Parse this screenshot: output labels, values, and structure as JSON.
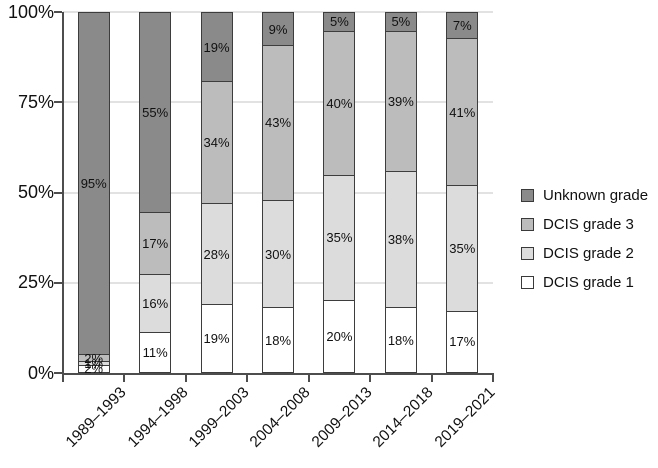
{
  "chart_data": {
    "type": "bar",
    "variant": "stacked-100-percent",
    "categories": [
      "1989–1993",
      "1994–1998",
      "1999–2003",
      "2004–2008",
      "2009–2013",
      "2014–2018",
      "2019–2021"
    ],
    "series": [
      {
        "name": "DCIS grade 1",
        "color": "#ffffff",
        "values": [
          2,
          11,
          19,
          18,
          20,
          18,
          17
        ]
      },
      {
        "name": "DCIS grade 2",
        "color": "#dcdcdc",
        "values": [
          1,
          16,
          28,
          30,
          35,
          38,
          35
        ]
      },
      {
        "name": "DCIS grade 3",
        "color": "#bcbcbc",
        "values": [
          2,
          17,
          34,
          43,
          40,
          39,
          41
        ]
      },
      {
        "name": "Unknown grade",
        "color": "#8a8a8a",
        "values": [
          95,
          55,
          19,
          9,
          5,
          5,
          7
        ]
      }
    ],
    "stack_order_note": "series listed bottom-to-top of each bar",
    "value_label_format": "{v}%",
    "yticks": [
      0,
      25,
      50,
      75,
      100
    ],
    "ytick_format": "{v}%",
    "ylim": [
      0,
      100
    ],
    "grid": "horizontal",
    "legend_position": "right",
    "legend_order": [
      "Unknown grade",
      "DCIS grade 3",
      "DCIS grade 2",
      "DCIS grade 1"
    ]
  },
  "colors": {
    "axis": "#4d4d4d",
    "gridline": "#e2e2e2",
    "segment_border": "#3d3d3d",
    "swatch_border": "#3a3a3a",
    "text": "#111111",
    "background": "#ffffff"
  }
}
